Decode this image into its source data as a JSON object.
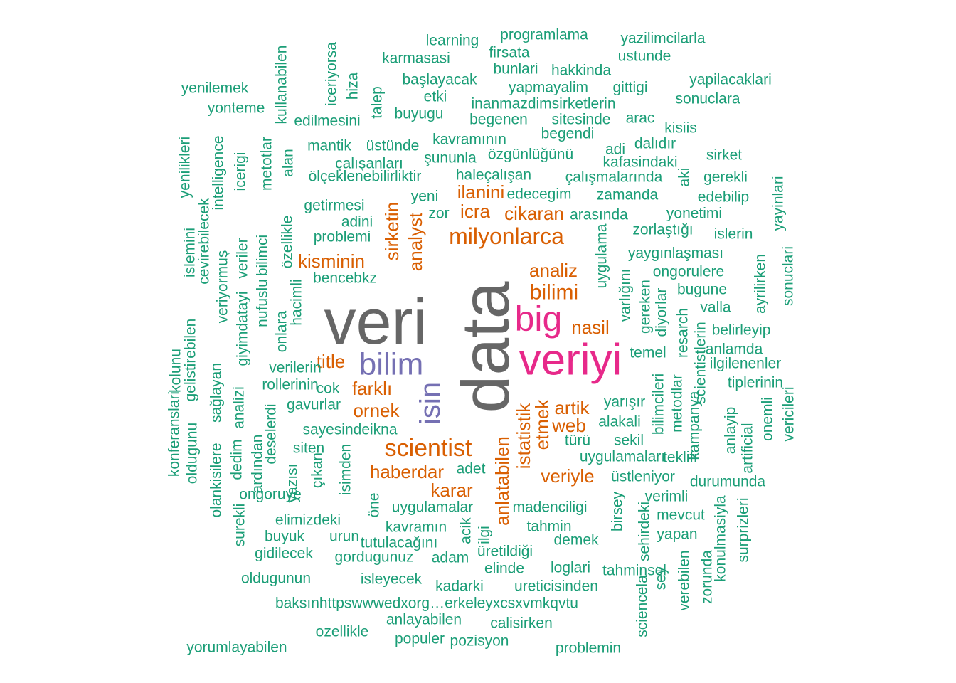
{
  "chart_data": {
    "type": "wordcloud",
    "palette": {
      "level1": "#1b9e77",
      "level2": "#d95f02",
      "level3": "#7570b3",
      "level4": "#e7298a",
      "level5": "#666666"
    },
    "words": [
      {
        "text": "data",
        "size": 95
      },
      {
        "text": "veri",
        "size": 90
      },
      {
        "text": "veriyi",
        "size": 62
      },
      {
        "text": "big",
        "size": 50
      },
      {
        "text": "bilim",
        "size": 44
      },
      {
        "text": "isin",
        "size": 40
      },
      {
        "text": "scientist",
        "size": 34
      },
      {
        "text": "milyonlarca",
        "size": 32
      },
      {
        "text": "bilimi",
        "size": 30
      },
      {
        "text": "kisminin",
        "size": 26
      },
      {
        "text": "sirketin",
        "size": 26
      },
      {
        "text": "analyst",
        "size": 26
      },
      {
        "text": "haberdar",
        "size": 26
      },
      {
        "text": "karar",
        "size": 26
      },
      {
        "text": "ilanini",
        "size": 26
      },
      {
        "text": "cikaran",
        "size": 26
      },
      {
        "text": "nasil",
        "size": 26
      },
      {
        "text": "analiz",
        "size": 26
      },
      {
        "text": "artik",
        "size": 26
      },
      {
        "text": "veriyle",
        "size": 26
      },
      {
        "text": "ornek",
        "size": 26
      },
      {
        "text": "farklı",
        "size": 26
      },
      {
        "text": "icra",
        "size": 26
      },
      {
        "text": "title",
        "size": 26
      },
      {
        "text": "web",
        "size": 26
      },
      {
        "text": "etmek",
        "size": 26
      },
      {
        "text": "istatistik",
        "size": 26
      },
      {
        "text": "anlatabilen",
        "size": 26
      },
      {
        "text": "learning",
        "size": 21
      },
      {
        "text": "programlama",
        "size": 21
      },
      {
        "text": "yazilimcilarla",
        "size": 21
      },
      {
        "text": "firsata",
        "size": 21
      },
      {
        "text": "ustunde",
        "size": 21
      },
      {
        "text": "karmasasi",
        "size": 21
      },
      {
        "text": "bunlari",
        "size": 21
      },
      {
        "text": "hakkinda",
        "size": 21
      },
      {
        "text": "başlayacak",
        "size": 21
      },
      {
        "text": "yapilacaklari",
        "size": 21
      },
      {
        "text": "yenilemek",
        "size": 21
      },
      {
        "text": "yapmayalim",
        "size": 21
      },
      {
        "text": "gittigi",
        "size": 21
      },
      {
        "text": "etki",
        "size": 21
      },
      {
        "text": "sonuclara",
        "size": 21
      },
      {
        "text": "inanmazdimsirketlerin",
        "size": 21
      },
      {
        "text": "yonteme",
        "size": 21
      },
      {
        "text": "buyugu",
        "size": 21
      },
      {
        "text": "edilmesini",
        "size": 21
      },
      {
        "text": "begenen",
        "size": 21
      },
      {
        "text": "sitesinde",
        "size": 21
      },
      {
        "text": "arac",
        "size": 21
      },
      {
        "text": "kisiis",
        "size": 21
      },
      {
        "text": "begendi",
        "size": 21
      },
      {
        "text": "kavramının",
        "size": 21
      },
      {
        "text": "mantik",
        "size": 21
      },
      {
        "text": "üstünde",
        "size": 21
      },
      {
        "text": "dalıdır",
        "size": 21
      },
      {
        "text": "adi",
        "size": 21
      },
      {
        "text": "sirket",
        "size": 21
      },
      {
        "text": "özgünlüğünü",
        "size": 21
      },
      {
        "text": "şununla",
        "size": 21
      },
      {
        "text": "çalışanları",
        "size": 21
      },
      {
        "text": "kafasindaki",
        "size": 21
      },
      {
        "text": "haleçalışan",
        "size": 21
      },
      {
        "text": "çalışmalarında",
        "size": 21
      },
      {
        "text": "gerekli",
        "size": 21
      },
      {
        "text": "ölçeklenebilirliktir",
        "size": 21
      },
      {
        "text": "edecegim",
        "size": 21
      },
      {
        "text": "zamanda",
        "size": 21
      },
      {
        "text": "edebilip",
        "size": 21
      },
      {
        "text": "yeni",
        "size": 21
      },
      {
        "text": "getirmesi",
        "size": 21
      },
      {
        "text": "zor",
        "size": 21
      },
      {
        "text": "arasında",
        "size": 21
      },
      {
        "text": "yonetimi",
        "size": 21
      },
      {
        "text": "adini",
        "size": 21
      },
      {
        "text": "zorlaştığı",
        "size": 21
      },
      {
        "text": "islerin",
        "size": 21
      },
      {
        "text": "problemi",
        "size": 21
      },
      {
        "text": "yaygınlaşması",
        "size": 21
      },
      {
        "text": "ongorulere",
        "size": 21
      },
      {
        "text": "bencebkz",
        "size": 21
      },
      {
        "text": "bugune",
        "size": 21
      },
      {
        "text": "valla",
        "size": 21
      },
      {
        "text": "belirleyip",
        "size": 21
      },
      {
        "text": "temel",
        "size": 21
      },
      {
        "text": "anlamda",
        "size": 21
      },
      {
        "text": "ilgilenenler",
        "size": 21
      },
      {
        "text": "verilerin",
        "size": 21
      },
      {
        "text": "tiplerinin",
        "size": 21
      },
      {
        "text": "rollerinin",
        "size": 21
      },
      {
        "text": "cok",
        "size": 21
      },
      {
        "text": "yarışır",
        "size": 21
      },
      {
        "text": "gavurlar",
        "size": 21
      },
      {
        "text": "alakali",
        "size": 21
      },
      {
        "text": "sayesindeikna",
        "size": 21
      },
      {
        "text": "türü",
        "size": 21
      },
      {
        "text": "sekil",
        "size": 21
      },
      {
        "text": "siten",
        "size": 21
      },
      {
        "text": "uygulamaları",
        "size": 21
      },
      {
        "text": "teklifi",
        "size": 21
      },
      {
        "text": "adet",
        "size": 21
      },
      {
        "text": "üstleniyor",
        "size": 21
      },
      {
        "text": "durumunda",
        "size": 21
      },
      {
        "text": "ongoruye",
        "size": 21
      },
      {
        "text": "verimli",
        "size": 21
      },
      {
        "text": "uygulamalar",
        "size": 21
      },
      {
        "text": "madenciligi",
        "size": 21
      },
      {
        "text": "mevcut",
        "size": 21
      },
      {
        "text": "elimizdeki",
        "size": 21
      },
      {
        "text": "kavramın",
        "size": 21
      },
      {
        "text": "tahmin",
        "size": 21
      },
      {
        "text": "yapan",
        "size": 21
      },
      {
        "text": "buyuk",
        "size": 21
      },
      {
        "text": "urun",
        "size": 21
      },
      {
        "text": "tutulacağını",
        "size": 21
      },
      {
        "text": "demek",
        "size": 21
      },
      {
        "text": "gidilecek",
        "size": 21
      },
      {
        "text": "üretildiği",
        "size": 21
      },
      {
        "text": "gordugunuz",
        "size": 21
      },
      {
        "text": "adam",
        "size": 21
      },
      {
        "text": "elinde",
        "size": 21
      },
      {
        "text": "loglari",
        "size": 21
      },
      {
        "text": "tahminsel",
        "size": 21
      },
      {
        "text": "oldugunun",
        "size": 21
      },
      {
        "text": "isleyecek",
        "size": 21
      },
      {
        "text": "kadarki",
        "size": 21
      },
      {
        "text": "ureticisinden",
        "size": 21
      },
      {
        "text": "baksınhttpswwwedxorg…erkeleyxcsxvmkqvtu",
        "size": 21
      },
      {
        "text": "anlayabilen",
        "size": 21
      },
      {
        "text": "calisirken",
        "size": 21
      },
      {
        "text": "ozellikle",
        "size": 21
      },
      {
        "text": "populer",
        "size": 21
      },
      {
        "text": "pozisyon",
        "size": 21
      },
      {
        "text": "yorumlayabilen",
        "size": 21
      },
      {
        "text": "problemin",
        "size": 21
      },
      {
        "text": "iceriyorsa",
        "size": 21
      },
      {
        "text": "hiza",
        "size": 21
      },
      {
        "text": "talep",
        "size": 21
      },
      {
        "text": "kullanabilen",
        "size": 21
      },
      {
        "text": "alan",
        "size": 21
      },
      {
        "text": "metotlar",
        "size": 21
      },
      {
        "text": "icerigi",
        "size": 21
      },
      {
        "text": "intelligence",
        "size": 21
      },
      {
        "text": "yenilikleri",
        "size": 21
      },
      {
        "text": "cevirebilecek",
        "size": 21
      },
      {
        "text": "islemini",
        "size": 21
      },
      {
        "text": "veriyormuş",
        "size": 21
      },
      {
        "text": "veriler",
        "size": 21
      },
      {
        "text": "bilimci",
        "size": 21
      },
      {
        "text": "özellikle",
        "size": 21
      },
      {
        "text": "nufuslu",
        "size": 21
      },
      {
        "text": "giyimdatayi",
        "size": 21
      },
      {
        "text": "hacimli",
        "size": 21
      },
      {
        "text": "onlara",
        "size": 21
      },
      {
        "text": "kolunu",
        "size": 21
      },
      {
        "text": "gelistirebilen",
        "size": 21
      },
      {
        "text": "konferanslari",
        "size": 21
      },
      {
        "text": "sağlayan",
        "size": 21
      },
      {
        "text": "oldugunu",
        "size": 21
      },
      {
        "text": "olankisilere",
        "size": 21
      },
      {
        "text": "analizi",
        "size": 21
      },
      {
        "text": "dedim",
        "size": 21
      },
      {
        "text": "deselerdi",
        "size": 21
      },
      {
        "text": "ardından",
        "size": 21
      },
      {
        "text": "surekli",
        "size": 21
      },
      {
        "text": "yazısı",
        "size": 21
      },
      {
        "text": "çıkan",
        "size": 21
      },
      {
        "text": "isimden",
        "size": 21
      },
      {
        "text": "öne",
        "size": 21
      },
      {
        "text": "acik",
        "size": 21
      },
      {
        "text": "ilgi",
        "size": 21
      },
      {
        "text": "uygulama",
        "size": 21
      },
      {
        "text": "varlığını",
        "size": 21
      },
      {
        "text": "gereken",
        "size": 21
      },
      {
        "text": "diyorlar",
        "size": 21
      },
      {
        "text": "resarch",
        "size": 21
      },
      {
        "text": "scientistlerin",
        "size": 21
      },
      {
        "text": "metodlar",
        "size": 21
      },
      {
        "text": "bilimcileri",
        "size": 21
      },
      {
        "text": "kampanya",
        "size": 21
      },
      {
        "text": "anlayip",
        "size": 21
      },
      {
        "text": "artificial",
        "size": 21
      },
      {
        "text": "onemli",
        "size": 21
      },
      {
        "text": "vericileri",
        "size": 21
      },
      {
        "text": "ayrilirken",
        "size": 21
      },
      {
        "text": "yayinlari",
        "size": 21
      },
      {
        "text": "sonuclari",
        "size": 21
      },
      {
        "text": "aki",
        "size": 21
      },
      {
        "text": "birsey",
        "size": 21
      },
      {
        "text": "sehirdeki",
        "size": 21
      },
      {
        "text": "sey",
        "size": 21
      },
      {
        "text": "sciencela",
        "size": 21
      },
      {
        "text": "verebilen",
        "size": 21
      },
      {
        "text": "zorunda",
        "size": 21
      },
      {
        "text": "konulmasiyla",
        "size": 21
      },
      {
        "text": "surprizleri",
        "size": 21
      }
    ]
  }
}
